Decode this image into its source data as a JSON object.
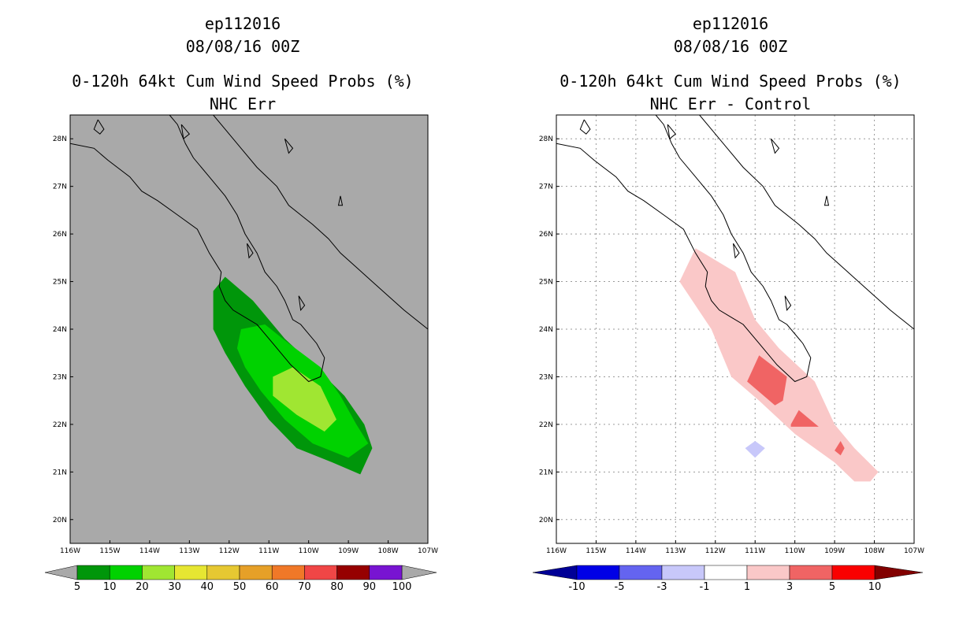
{
  "chart_data": [
    {
      "type": "heatmap",
      "storm_id": "ep112016",
      "datetime": "08/08/16 00Z",
      "title": "0-120h 64kt Cum Wind Speed Probs (%)",
      "subtitle": "NHC Err",
      "xlabel": "",
      "ylabel": "",
      "xlim": [
        -116,
        -107
      ],
      "ylim": [
        19.5,
        28.5
      ],
      "x_ticks": [
        -116,
        -115,
        -114,
        -113,
        -112,
        -111,
        -110,
        -109,
        -108,
        -107
      ],
      "x_tick_labels": [
        "116W",
        "115W",
        "114W",
        "113W",
        "112W",
        "111W",
        "110W",
        "109W",
        "108W",
        "107W"
      ],
      "y_ticks": [
        20,
        21,
        22,
        23,
        24,
        25,
        26,
        27,
        28
      ],
      "y_tick_labels": [
        "20N",
        "21N",
        "22N",
        "23N",
        "24N",
        "25N",
        "26N",
        "27N",
        "28N"
      ],
      "grid": false,
      "background_color": "#a9a9a9",
      "colorbar": {
        "labels": [
          "5",
          "10",
          "20",
          "30",
          "40",
          "50",
          "60",
          "70",
          "80",
          "90",
          "100"
        ],
        "colors": [
          "#00960a",
          "#00d200",
          "#a0e632",
          "#e6e632",
          "#e6c832",
          "#e6a028",
          "#f07828",
          "#f04646",
          "#960000",
          "#7814d2"
        ],
        "end_left": "#a9a9a9",
        "end_right": "#a9a9a9"
      },
      "regions": [
        {
          "name": "5-10%",
          "color": "#00960a",
          "lon": [
            -112.4,
            -112.1,
            -111.4,
            -110.6,
            -109.7,
            -109.1,
            -108.6,
            -108.4,
            -108.7,
            -109.4,
            -110.3,
            -111.0,
            -111.6,
            -112.1,
            -112.4,
            -112.4
          ],
          "lat": [
            24.8,
            25.1,
            24.6,
            23.8,
            23.1,
            22.6,
            22.0,
            21.5,
            20.95,
            21.2,
            21.5,
            22.1,
            22.8,
            23.5,
            24.0,
            24.8
          ]
        },
        {
          "name": "10-20%",
          "color": "#00d200",
          "lon": [
            -111.7,
            -111.1,
            -110.5,
            -109.7,
            -109.2,
            -108.8,
            -108.5,
            -109.0,
            -109.9,
            -110.6,
            -111.2,
            -111.6,
            -111.8,
            -111.7
          ],
          "lat": [
            24.0,
            24.1,
            23.7,
            23.2,
            22.6,
            22.0,
            21.6,
            21.3,
            21.6,
            22.1,
            22.7,
            23.2,
            23.6,
            24.0
          ]
        },
        {
          "name": "20-30%",
          "color": "#a0e632",
          "lon": [
            -110.9,
            -110.4,
            -109.7,
            -109.3,
            -109.6,
            -110.3,
            -110.9,
            -110.9
          ],
          "lat": [
            23.0,
            23.2,
            22.8,
            22.1,
            21.85,
            22.2,
            22.6,
            23.0
          ]
        }
      ]
    },
    {
      "type": "heatmap",
      "storm_id": "ep112016",
      "datetime": "08/08/16 00Z",
      "title": "0-120h 64kt Cum Wind Speed Probs (%)",
      "subtitle": "NHC Err - Control",
      "xlabel": "",
      "ylabel": "",
      "xlim": [
        -116,
        -107
      ],
      "ylim": [
        19.5,
        28.5
      ],
      "x_ticks": [
        -116,
        -115,
        -114,
        -113,
        -112,
        -111,
        -110,
        -109,
        -108,
        -107
      ],
      "x_tick_labels": [
        "116W",
        "115W",
        "114W",
        "113W",
        "112W",
        "111W",
        "110W",
        "109W",
        "108W",
        "107W"
      ],
      "y_ticks": [
        20,
        21,
        22,
        23,
        24,
        25,
        26,
        27,
        28
      ],
      "y_tick_labels": [
        "20N",
        "21N",
        "22N",
        "23N",
        "24N",
        "25N",
        "26N",
        "27N",
        "28N"
      ],
      "grid": true,
      "background_color": "#ffffff",
      "colorbar": {
        "labels": [
          "-10",
          "-5",
          "-3",
          "-1",
          "1",
          "3",
          "5",
          "10"
        ],
        "colors": [
          "#0000e6",
          "#6464f0",
          "#c8c8fa",
          "#ffffff",
          "#fac8c8",
          "#f06464",
          "#fa0000"
        ],
        "end_left": "#000096",
        "end_right": "#820000"
      },
      "regions": [
        {
          "name": "1-3%",
          "color": "#fac8c8",
          "lon": [
            -112.9,
            -112.5,
            -111.5,
            -111.0,
            -110.4,
            -109.5,
            -109.0,
            -108.5,
            -107.9,
            -108.1,
            -108.5,
            -109.0,
            -110.0,
            -110.9,
            -111.6,
            -112.1,
            -112.9
          ],
          "lat": [
            25.0,
            25.7,
            25.2,
            24.2,
            23.6,
            22.9,
            22.0,
            21.5,
            21.0,
            20.8,
            20.8,
            21.2,
            21.8,
            22.5,
            23.0,
            24.0,
            25.0
          ]
        },
        {
          "name": "3-5% (a)",
          "color": "#f06464",
          "lon": [
            -111.2,
            -110.9,
            -110.2,
            -110.3,
            -110.5,
            -111.2
          ],
          "lat": [
            22.9,
            23.45,
            23.0,
            22.5,
            22.4,
            22.9
          ]
        },
        {
          "name": "3-5% (b)",
          "color": "#f06464",
          "lon": [
            -110.1,
            -109.9,
            -109.4,
            -110.1,
            -110.1
          ],
          "lat": [
            22.0,
            22.3,
            21.95,
            21.95,
            22.0
          ]
        },
        {
          "name": "3-5% (c)",
          "color": "#f06464",
          "lon": [
            -109.0,
            -108.85,
            -108.75,
            -108.85,
            -109.0
          ],
          "lat": [
            21.45,
            21.65,
            21.5,
            21.35,
            21.45
          ]
        },
        {
          "name": "-3 to -1%",
          "color": "#c8c8fa",
          "lon": [
            -111.25,
            -111.0,
            -110.75,
            -111.0,
            -111.25
          ],
          "lat": [
            21.5,
            21.65,
            21.5,
            21.3,
            21.5
          ]
        }
      ]
    }
  ]
}
